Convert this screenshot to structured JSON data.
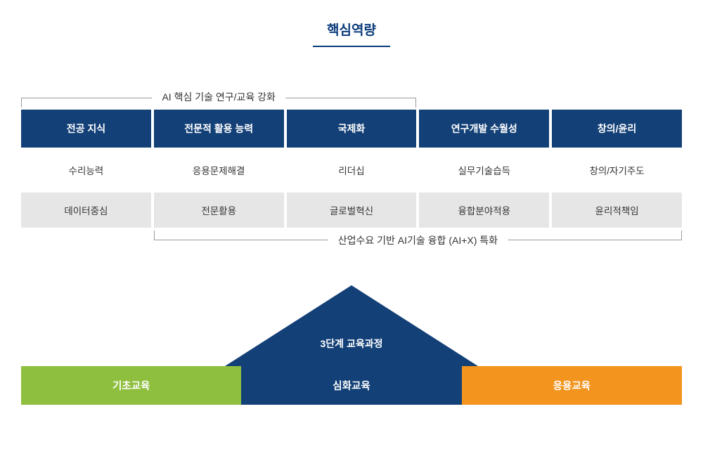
{
  "title": "핵심역량",
  "colors": {
    "primary": "#134077",
    "title": "#0a3b7a",
    "lightGray": "#e6e6e6",
    "bracket": "#999999",
    "text": "#333333",
    "stage1": "#8fbf3f",
    "stage2": "#134077",
    "stage3": "#f3941e"
  },
  "topBracket": {
    "label": "AI 핵심 기술 연구/교육 강화",
    "spanColsStart": 0,
    "spanColsEnd": 3
  },
  "headers": [
    "전공 지식",
    "전문적 활용 능력",
    "국제화",
    "연구개발 수월성",
    "창의/윤리"
  ],
  "row2": [
    "수리능력",
    "응용문제해결",
    "리더십",
    "실무기술습득",
    "창의/자기주도"
  ],
  "row3": [
    "데이터중심",
    "전문활용",
    "글로벌혁신",
    "융합분야적용",
    "윤리적책임"
  ],
  "bottomBracket": {
    "label": "산업수요 기반 AI기술 융합 (AI+X) 특화",
    "spanColsStart": 1,
    "spanColsEnd": 5
  },
  "pyramidLabel": "3단계 교육과정",
  "stages": [
    {
      "label": "기초교육",
      "colorKey": "stage1"
    },
    {
      "label": "심화교육",
      "colorKey": "stage2"
    },
    {
      "label": "응용교육",
      "colorKey": "stage3"
    }
  ],
  "layout": {
    "contentWidth": 940,
    "cols": 5,
    "colGap": 4
  }
}
